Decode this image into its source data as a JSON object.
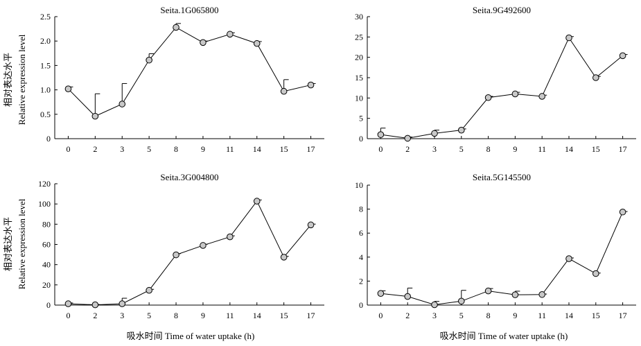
{
  "figure": {
    "xlabel": "吸水时间 Time of water uptake (h)",
    "ylabel_cn": "相对表达水平",
    "ylabel_en": "Relative expression level",
    "colors": {
      "marker_fill": "#c8c8c8",
      "line": "#000000"
    }
  },
  "chart_data": [
    {
      "type": "line",
      "title": "Seita.1G065800",
      "categories": [
        "0",
        "2",
        "3",
        "5",
        "8",
        "9",
        "11",
        "14",
        "15",
        "17"
      ],
      "values": [
        1.02,
        0.46,
        0.71,
        1.61,
        2.28,
        1.97,
        2.14,
        1.95,
        0.97,
        1.1
      ],
      "errors": [
        0.04,
        0.46,
        0.42,
        0.13,
        0.08,
        0.03,
        0.03,
        0.04,
        0.24,
        0.03
      ],
      "ylim": [
        0,
        2.5
      ],
      "yticks": [
        "0",
        "0.5",
        "1.0",
        "1.5",
        "2.0",
        "2.5"
      ],
      "ytick_values": [
        0,
        0.5,
        1.0,
        1.5,
        2.0,
        2.5
      ]
    },
    {
      "type": "line",
      "title": "Seita.9G492600",
      "categories": [
        "0",
        "2",
        "3",
        "5",
        "8",
        "9",
        "11",
        "14",
        "15",
        "17"
      ],
      "values": [
        1.0,
        0.1,
        1.3,
        2.1,
        10.1,
        11.0,
        10.4,
        24.8,
        15.0,
        20.4
      ],
      "errors": [
        1.6,
        0.3,
        0.8,
        0.3,
        0.3,
        0.4,
        0.3,
        0.3,
        0.3,
        0.3
      ],
      "ylim": [
        0,
        30
      ],
      "yticks": [
        "0",
        "5",
        "10",
        "15",
        "20",
        "25",
        "30"
      ],
      "ytick_values": [
        0,
        5,
        10,
        15,
        20,
        25,
        30
      ]
    },
    {
      "type": "line",
      "title": "Seita.3G004800",
      "categories": [
        "0",
        "2",
        "3",
        "5",
        "8",
        "9",
        "11",
        "14",
        "15",
        "17"
      ],
      "values": [
        1.3,
        0.3,
        1.3,
        14.6,
        49.7,
        59.0,
        67.5,
        102.8,
        47.4,
        79.3
      ],
      "errors": [
        0.8,
        0.2,
        5.5,
        1.0,
        1.2,
        1.2,
        1.0,
        1.2,
        0.8,
        0.8
      ],
      "ylim": [
        0,
        120
      ],
      "yticks": [
        "0",
        "20",
        "40",
        "60",
        "80",
        "100",
        "120"
      ],
      "ytick_values": [
        0,
        20,
        40,
        60,
        80,
        100,
        120
      ]
    },
    {
      "type": "line",
      "title": "Seita.5G145500",
      "categories": [
        "0",
        "2",
        "3",
        "5",
        "8",
        "9",
        "11",
        "14",
        "15",
        "17"
      ],
      "values": [
        0.97,
        0.72,
        0.03,
        0.33,
        1.18,
        0.86,
        0.88,
        3.87,
        2.63,
        7.76
      ],
      "errors": [
        0.22,
        0.7,
        0.28,
        0.9,
        0.2,
        0.3,
        0.04,
        0.06,
        0.04,
        0.04
      ],
      "ylim": [
        0,
        10
      ],
      "yticks": [
        "0",
        "2",
        "4",
        "6",
        "8",
        "10"
      ],
      "ytick_values": [
        0,
        2,
        4,
        6,
        8,
        10
      ]
    }
  ]
}
